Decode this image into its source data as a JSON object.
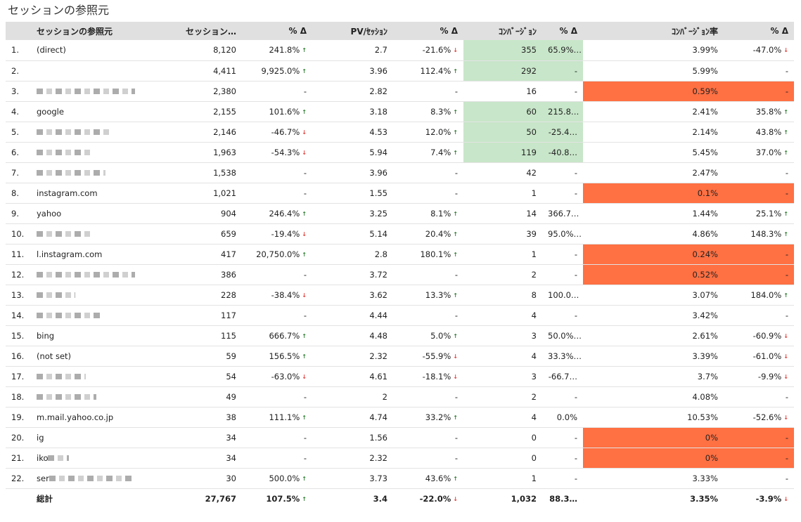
{
  "page": {
    "title": "セッションの参照元"
  },
  "table": {
    "headers": {
      "ref": "セッションの参照元",
      "sessions": "セッション…",
      "sessions_delta": "% Δ",
      "pv": "PV/ｾｯｼｮﾝ",
      "pv_delta": "% Δ",
      "conv": "ｺﾝﾊﾞｰｼﾞｮﾝ",
      "conv_delta": "% Δ",
      "rate": "ｺﾝﾊﾞｰｼﾞｮﾝ率",
      "rate_delta": "% Δ"
    },
    "rows": [
      {
        "idx": "1.",
        "ref": "(direct)",
        "blur": 0,
        "sessions": "8,120",
        "sd": "241.8%",
        "sd_dir": "up",
        "pv": "2.7",
        "pd": "-21.6%",
        "pd_dir": "down",
        "conv": "355",
        "cd": "65.9%…",
        "rate": "3.99%",
        "rd": "-47.0%",
        "rd_dir": "down",
        "hl": "green"
      },
      {
        "idx": "2.",
        "ref": "",
        "blur": 0,
        "sessions": "4,411",
        "sd": "9,925.0%",
        "sd_dir": "up",
        "pv": "3.96",
        "pd": "112.4%",
        "pd_dir": "up",
        "conv": "292",
        "cd": "-",
        "rate": "5.99%",
        "rd": "-",
        "rd_dir": "",
        "hl": "green"
      },
      {
        "idx": "3.",
        "ref": "",
        "blur": 140,
        "sessions": "2,380",
        "sd": "-",
        "sd_dir": "",
        "pv": "2.82",
        "pd": "-",
        "pd_dir": "",
        "conv": "16",
        "cd": "-",
        "rate": "0.59%",
        "rd": "-",
        "rd_dir": "",
        "hl": "orange"
      },
      {
        "idx": "4.",
        "ref": "google",
        "blur": 0,
        "sessions": "2,155",
        "sd": "101.6%",
        "sd_dir": "up",
        "pv": "3.18",
        "pd": "8.3%",
        "pd_dir": "up",
        "conv": "60",
        "cd": "215.8…",
        "rate": "2.41%",
        "rd": "35.8%",
        "rd_dir": "up",
        "hl": "green"
      },
      {
        "idx": "5.",
        "ref": "",
        "blur": 105,
        "sessions": "2,146",
        "sd": "-46.7%",
        "sd_dir": "down",
        "pv": "4.53",
        "pd": "12.0%",
        "pd_dir": "up",
        "conv": "50",
        "cd": "-25.4…",
        "rate": "2.14%",
        "rd": "43.8%",
        "rd_dir": "up",
        "hl": "green"
      },
      {
        "idx": "6.",
        "ref": "",
        "blur": 80,
        "sessions": "1,963",
        "sd": "-54.3%",
        "sd_dir": "down",
        "pv": "5.94",
        "pd": "7.4%",
        "pd_dir": "up",
        "conv": "119",
        "cd": "-40.8…",
        "rate": "5.45%",
        "rd": "37.0%",
        "rd_dir": "up",
        "hl": "green"
      },
      {
        "idx": "7.",
        "ref": "",
        "blur": 98,
        "sessions": "1,538",
        "sd": "-",
        "sd_dir": "",
        "pv": "3.96",
        "pd": "-",
        "pd_dir": "",
        "conv": "42",
        "cd": "-",
        "rate": "2.47%",
        "rd": "-",
        "rd_dir": "",
        "hl": ""
      },
      {
        "idx": "8.",
        "ref": "instagram.com",
        "blur": 0,
        "sessions": "1,021",
        "sd": "-",
        "sd_dir": "",
        "pv": "1.55",
        "pd": "-",
        "pd_dir": "",
        "conv": "1",
        "cd": "-",
        "rate": "0.1%",
        "rd": "-",
        "rd_dir": "",
        "hl": "orange"
      },
      {
        "idx": "9.",
        "ref": "yahoo",
        "blur": 0,
        "sessions": "904",
        "sd": "246.4%",
        "sd_dir": "up",
        "pv": "3.25",
        "pd": "8.1%",
        "pd_dir": "up",
        "conv": "14",
        "cd": "366.7…",
        "rate": "1.44%",
        "rd": "25.1%",
        "rd_dir": "up",
        "hl": ""
      },
      {
        "idx": "10.",
        "ref": "",
        "blur": 80,
        "sessions": "659",
        "sd": "-19.4%",
        "sd_dir": "down",
        "pv": "5.14",
        "pd": "20.4%",
        "pd_dir": "up",
        "conv": "39",
        "cd": "95.0%…",
        "rate": "4.86%",
        "rd": "148.3%",
        "rd_dir": "up",
        "hl": ""
      },
      {
        "idx": "11.",
        "ref": "l.instagram.com",
        "blur": 0,
        "sessions": "417",
        "sd": "20,750.0%",
        "sd_dir": "up",
        "pv": "2.8",
        "pd": "180.1%",
        "pd_dir": "up",
        "conv": "1",
        "cd": "-",
        "rate": "0.24%",
        "rd": "-",
        "rd_dir": "",
        "hl": "orange"
      },
      {
        "idx": "12.",
        "ref": "",
        "blur": 140,
        "sessions": "386",
        "sd": "-",
        "sd_dir": "",
        "pv": "3.72",
        "pd": "-",
        "pd_dir": "",
        "conv": "2",
        "cd": "-",
        "rate": "0.52%",
        "rd": "-",
        "rd_dir": "",
        "hl": "orange"
      },
      {
        "idx": "13.",
        "ref": "",
        "blur": 55,
        "sessions": "228",
        "sd": "-38.4%",
        "sd_dir": "down",
        "pv": "3.62",
        "pd": "13.3%",
        "pd_dir": "up",
        "conv": "8",
        "cd": "100.0…",
        "rate": "3.07%",
        "rd": "184.0%",
        "rd_dir": "up",
        "hl": ""
      },
      {
        "idx": "14.",
        "ref": "",
        "blur": 95,
        "sessions": "117",
        "sd": "-",
        "sd_dir": "",
        "pv": "4.44",
        "pd": "-",
        "pd_dir": "",
        "conv": "4",
        "cd": "-",
        "rate": "3.42%",
        "rd": "-",
        "rd_dir": "",
        "hl": ""
      },
      {
        "idx": "15.",
        "ref": "bing",
        "blur": 0,
        "sessions": "115",
        "sd": "666.7%",
        "sd_dir": "up",
        "pv": "4.48",
        "pd": "5.0%",
        "pd_dir": "up",
        "conv": "3",
        "cd": "50.0%…",
        "rate": "2.61%",
        "rd": "-60.9%",
        "rd_dir": "down",
        "hl": ""
      },
      {
        "idx": "16.",
        "ref": "(not set)",
        "blur": 0,
        "sessions": "59",
        "sd": "156.5%",
        "sd_dir": "up",
        "pv": "2.32",
        "pd": "-55.9%",
        "pd_dir": "down",
        "conv": "4",
        "cd": "33.3%…",
        "rate": "3.39%",
        "rd": "-61.0%",
        "rd_dir": "down",
        "hl": ""
      },
      {
        "idx": "17.",
        "ref": "",
        "blur": 70,
        "sessions": "54",
        "sd": "-63.0%",
        "sd_dir": "down",
        "pv": "4.61",
        "pd": "-18.1%",
        "pd_dir": "down",
        "conv": "3",
        "cd": "-66.7…",
        "rate": "3.7%",
        "rd": "-9.9%",
        "rd_dir": "down",
        "hl": ""
      },
      {
        "idx": "18.",
        "ref": "",
        "blur": 85,
        "sessions": "49",
        "sd": "-",
        "sd_dir": "",
        "pv": "2",
        "pd": "-",
        "pd_dir": "",
        "conv": "2",
        "cd": "-",
        "rate": "4.08%",
        "rd": "-",
        "rd_dir": "",
        "hl": ""
      },
      {
        "idx": "19.",
        "ref": "m.mail.yahoo.co.jp",
        "blur": 0,
        "sessions": "38",
        "sd": "111.1%",
        "sd_dir": "up",
        "pv": "4.74",
        "pd": "33.2%",
        "pd_dir": "up",
        "conv": "4",
        "cd": "0.0%",
        "rate": "10.53%",
        "rd": "-52.6%",
        "rd_dir": "down",
        "hl": ""
      },
      {
        "idx": "20.",
        "ref": "ig",
        "blur": 0,
        "sessions": "34",
        "sd": "-",
        "sd_dir": "",
        "pv": "1.56",
        "pd": "-",
        "pd_dir": "",
        "conv": "0",
        "cd": "-",
        "rate": "0%",
        "rd": "-",
        "rd_dir": "",
        "hl": "orange"
      },
      {
        "idx": "21.",
        "ref": "iko",
        "blur": 30,
        "sessions": "34",
        "sd": "-",
        "sd_dir": "",
        "pv": "2.32",
        "pd": "-",
        "pd_dir": "",
        "conv": "0",
        "cd": "-",
        "rate": "0%",
        "rd": "-",
        "rd_dir": "",
        "hl": "orange"
      },
      {
        "idx": "22.",
        "ref": "ser",
        "blur": 120,
        "sessions": "30",
        "sd": "500.0%",
        "sd_dir": "up",
        "pv": "3.73",
        "pd": "43.6%",
        "pd_dir": "up",
        "conv": "1",
        "cd": "-",
        "rate": "3.33%",
        "rd": "-",
        "rd_dir": "",
        "hl": ""
      }
    ],
    "total": {
      "label": "総計",
      "sessions": "27,767",
      "sd": "107.5%",
      "sd_dir": "up",
      "pv": "3.4",
      "pd": "-22.0%",
      "pd_dir": "down",
      "conv": "1,032",
      "cd": "88.3…",
      "rate": "3.35%",
      "rd": "-3.9%",
      "rd_dir": "down"
    }
  },
  "colors": {
    "header_bg": "#e0e0e0",
    "highlight_green": "#c8e6c9",
    "highlight_orange": "#ff7043",
    "arrow_up": "#2e7d32",
    "arrow_down": "#e53935"
  },
  "icons": {
    "up": "arrow-up-icon",
    "down": "arrow-down-icon"
  }
}
